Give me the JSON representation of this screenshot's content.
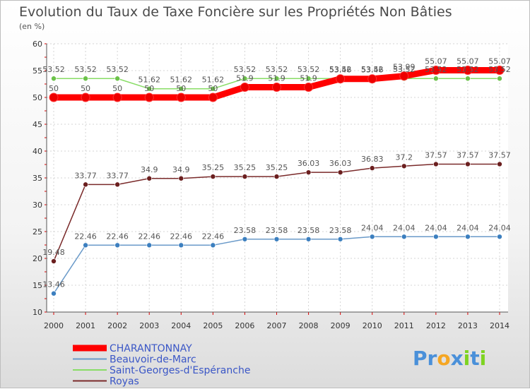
{
  "chart_data": {
    "type": "line",
    "title": "Evolution du Taux de Taxe Foncière sur les Propriétés Non Bâties",
    "subtitle": "(en %)",
    "xlabel": "",
    "ylabel": "(en %)",
    "ylim": [
      10,
      60
    ],
    "yticks": [
      10,
      15,
      20,
      25,
      30,
      35,
      40,
      45,
      50,
      55,
      60
    ],
    "grid": true,
    "legend_position": "bottom-left",
    "x": [
      "2000",
      "2001",
      "2002",
      "2003",
      "2004",
      "2005",
      "2006",
      "2007",
      "2008",
      "2009",
      "2010",
      "2011",
      "2012",
      "2013",
      "2014"
    ],
    "series": [
      {
        "name": "CHARANTONNAY",
        "color": "#ff0000",
        "marker_color": "#ee0000",
        "values": [
          50,
          50,
          50,
          50,
          50,
          50,
          51.9,
          51.9,
          51.9,
          53.46,
          53.46,
          53.99,
          55.07,
          55.07,
          55.07
        ],
        "labels": [
          "50",
          "50",
          "50",
          "50",
          "50",
          "50",
          "51.9",
          "51.9",
          "51.9",
          "53.46",
          "53.46",
          "53.99",
          "55.07",
          "55.07",
          "55.07"
        ]
      },
      {
        "name": "Beauvoir-de-Marc",
        "color": "#6a9ac9",
        "marker_color": "#3c7fbf",
        "values": [
          13.46,
          22.46,
          22.46,
          22.46,
          22.46,
          22.46,
          23.58,
          23.58,
          23.58,
          23.58,
          24.04,
          24.04,
          24.04,
          24.04,
          24.04
        ],
        "labels": [
          "13.46",
          "22.46",
          "22.46",
          "22.46",
          "22.46",
          "22.46",
          "23.58",
          "23.58",
          "23.58",
          "23.58",
          "24.04",
          "24.04",
          "24.04",
          "24.04",
          "24.04"
        ]
      },
      {
        "name": "Saint-Georges-d'Espéranche",
        "color": "#88dd66",
        "marker_color": "#6cc24a",
        "values": [
          53.52,
          53.52,
          53.52,
          51.62,
          51.62,
          51.62,
          53.52,
          53.52,
          53.52,
          53.52,
          53.52,
          53.52,
          53.52,
          53.52,
          53.52
        ],
        "labels": [
          "53.52",
          "53.52",
          "53.52",
          "51.62",
          "51.62",
          "51.62",
          "53.52",
          "53.52",
          "53.52",
          "53.52",
          "53.52",
          "53.52",
          "53.52",
          "53.52",
          "53.52"
        ]
      },
      {
        "name": "Royas",
        "color": "#7a2a2a",
        "marker_color": "#6b1f1f",
        "values": [
          19.48,
          33.77,
          33.77,
          34.9,
          34.9,
          35.25,
          35.25,
          35.25,
          36.03,
          36.03,
          36.83,
          37.2,
          37.57,
          37.57,
          37.57
        ],
        "labels": [
          "19.48",
          "33.77",
          "33.77",
          "34.9",
          "34.9",
          "35.25",
          "35.25",
          "35.25",
          "36.03",
          "36.03",
          "36.83",
          "37.2",
          "37.57",
          "37.57",
          "37.57"
        ]
      }
    ]
  },
  "logo": {
    "letters": [
      "P",
      "r",
      "o",
      "x",
      "i",
      "t",
      "i"
    ],
    "colors": [
      "#4a90d9",
      "#4a90d9",
      "#f5a623",
      "#4a90d9",
      "#7ed321",
      "#4a90d9",
      "#7ed321"
    ]
  }
}
